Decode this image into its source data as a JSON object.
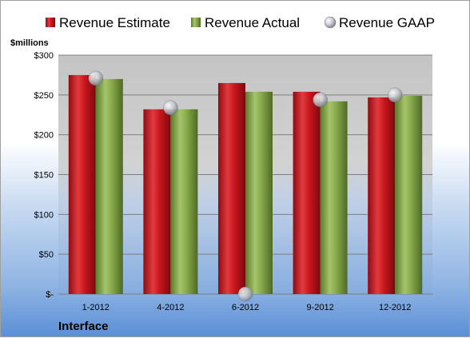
{
  "chart_data": {
    "type": "bar",
    "categories": [
      "1-2012",
      "4-2012",
      "6-2012",
      "9-2012",
      "12-2012"
    ],
    "series": [
      {
        "name": "Revenue Estimate",
        "kind": "bar",
        "color": "#c0141c",
        "values": [
          275,
          232,
          265,
          254,
          247
        ]
      },
      {
        "name": "Revenue Actual",
        "kind": "bar",
        "color": "#86a84a",
        "values": [
          270,
          232,
          254,
          242,
          249
        ]
      },
      {
        "name": "Revenue GAAP",
        "kind": "marker",
        "color": "#b8bcc4",
        "values": [
          271,
          234,
          0,
          244,
          250
        ]
      }
    ],
    "ylabel": "$millions",
    "ylim": [
      0,
      300
    ],
    "yticks": [
      0,
      50,
      100,
      150,
      200,
      250,
      300
    ],
    "ytick_labels": [
      "$-",
      "$50",
      "$100",
      "$150",
      "$200",
      "$250",
      "$300"
    ],
    "grid": true,
    "legend_position": "top",
    "footer": "Interface"
  }
}
